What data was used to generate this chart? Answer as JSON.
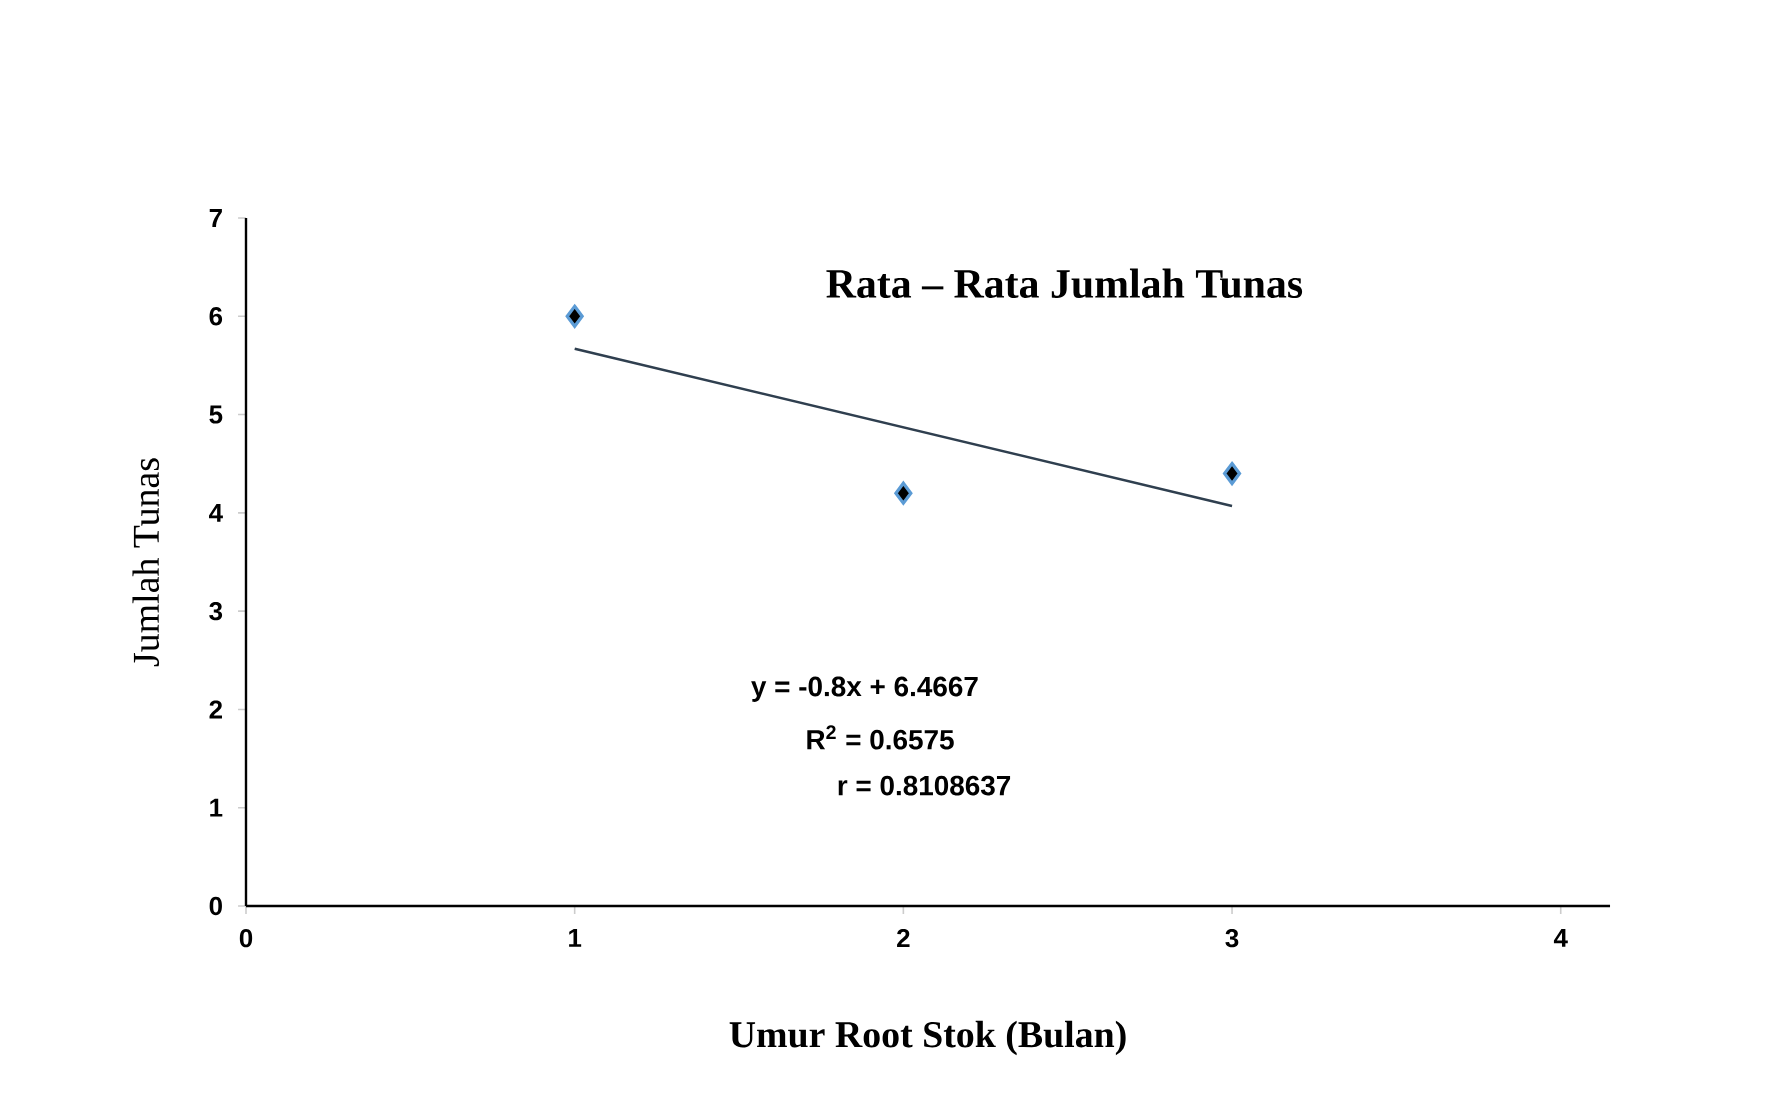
{
  "chart_data": {
    "type": "scatter",
    "title": "Rata – Rata Jumlah Tunas",
    "xlabel": "Umur Root Stok (Bulan)",
    "ylabel": "Jumlah Tunas",
    "annotations": [
      "y = -0.8x + 6.4667",
      "R$^{2}$ = 0.6575",
      "r  = 0.8108637"
    ],
    "xlim": [
      0,
      4.15
    ],
    "ylim": [
      0,
      7
    ],
    "xticks": [
      0,
      1,
      2,
      3,
      4
    ],
    "yticks": [
      0,
      1,
      2,
      3,
      4,
      5,
      6,
      7
    ],
    "series": [
      {
        "x": [
          1,
          2,
          3
        ],
        "values": [
          6,
          4.2,
          4.4
        ],
        "color": "#000000",
        "marker": "diamond"
      },
      {
        "type": "line",
        "x": [
          1,
          3
        ],
        "values": [
          5.67,
          4.07
        ],
        "color": "#2f3f4f",
        "marker": "none",
        "line_style": "solid"
      }
    ]
  }
}
